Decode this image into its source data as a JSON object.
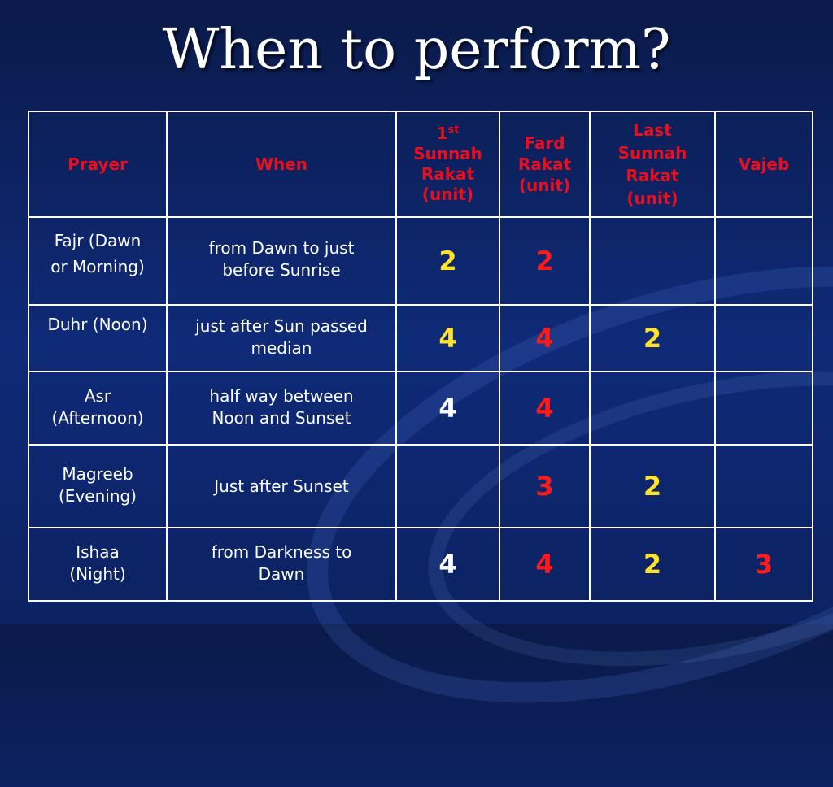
{
  "slide": {
    "title": "When to perform?"
  },
  "table": {
    "headers": {
      "prayer": "Prayer",
      "when": "When",
      "first_sunnah_num": "1",
      "first_sunnah_sup": "st",
      "first_sunnah_line1": "Sunnah",
      "first_sunnah_line2": "Rakat",
      "first_sunnah_unit": "(unit)",
      "fard_line1": "Fard",
      "fard_line2": "Rakat",
      "fard_unit": "(unit)",
      "last_sunnah_line1": "Last",
      "last_sunnah_line2": "Sunnah",
      "last_sunnah_line3": "Rakat",
      "last_sunnah_unit": "(unit)",
      "vajeb": "Vajeb"
    },
    "rows": [
      {
        "prayer_l1": "Fajr (Dawn",
        "prayer_l2": "or Morning)",
        "when_l1": "from Dawn to just",
        "when_l2": "before Sunrise",
        "first_sunnah": "2",
        "fard": "2",
        "last_sunnah": "",
        "vajeb": ""
      },
      {
        "prayer_l1": "Duhr (Noon)",
        "prayer_l2": "",
        "when_l1": "just after Sun passed",
        "when_l2": "median",
        "first_sunnah": "4",
        "fard": "4",
        "last_sunnah": "2",
        "vajeb": ""
      },
      {
        "prayer_l1": "Asr",
        "prayer_l2": "(Afternoon)",
        "when_l1": "half way between",
        "when_l2": "Noon and Sunset",
        "first_sunnah": "4",
        "fard": "4",
        "last_sunnah": "",
        "vajeb": ""
      },
      {
        "prayer_l1": "Magreeb",
        "prayer_l2": "(Evening)",
        "when_l1": "Just after Sunset",
        "when_l2": "",
        "first_sunnah": "",
        "fard": "3",
        "last_sunnah": "2",
        "vajeb": ""
      },
      {
        "prayer_l1": "Ishaa",
        "prayer_l2": "(Night)",
        "when_l1": "from Darkness to",
        "when_l2": "Dawn",
        "first_sunnah": "4",
        "fard": "4",
        "last_sunnah": "2",
        "vajeb": "3"
      }
    ],
    "colors": {
      "header_text": "#e8101f",
      "first_sunnah_yellow": "#ffe22a",
      "fard_red": "#ff1a1a",
      "last_sunnah_yellow": "#ffe22a",
      "vajeb_red": "#ff1a1a",
      "background": "#0f2a78"
    }
  }
}
